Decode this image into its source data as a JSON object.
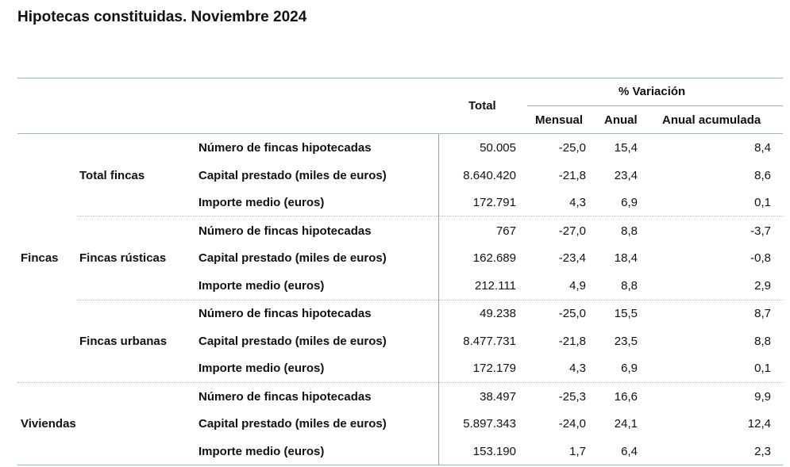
{
  "title": "Hipotecas constituidas. Noviembre 2024",
  "header": {
    "total": "Total",
    "variacion": "% Variación",
    "mensual": "Mensual",
    "anual": "Anual",
    "anual_acumulada": "Anual acumulada"
  },
  "groups": [
    {
      "label": "Fincas"
    },
    {
      "label": "Viviendas"
    }
  ],
  "subgroups": [
    {
      "label": "Total fincas"
    },
    {
      "label": "Fincas rústicas"
    },
    {
      "label": "Fincas urbanas"
    }
  ],
  "rows": [
    {
      "concept": "Número de fincas hipotecadas",
      "total": "50.005",
      "mensual": "-25,0",
      "anual": "15,4",
      "acumulada": "8,4"
    },
    {
      "concept": "Capital prestado (miles de euros)",
      "total": "8.640.420",
      "mensual": "-21,8",
      "anual": "23,4",
      "acumulada": "8,6"
    },
    {
      "concept": "Importe medio (euros)",
      "total": "172.791",
      "mensual": "4,3",
      "anual": "6,9",
      "acumulada": "0,1"
    },
    {
      "concept": "Número de fincas hipotecadas",
      "total": "767",
      "mensual": "-27,0",
      "anual": "8,8",
      "acumulada": "-3,7"
    },
    {
      "concept": "Capital prestado (miles de euros)",
      "total": "162.689",
      "mensual": "-23,4",
      "anual": "18,4",
      "acumulada": "-0,8"
    },
    {
      "concept": "Importe medio (euros)",
      "total": "212.111",
      "mensual": "4,9",
      "anual": "8,8",
      "acumulada": "2,9"
    },
    {
      "concept": "Número de fincas hipotecadas",
      "total": "49.238",
      "mensual": "-25,0",
      "anual": "15,5",
      "acumulada": "8,7"
    },
    {
      "concept": "Capital prestado (miles de euros)",
      "total": "8.477.731",
      "mensual": "-21,8",
      "anual": "23,5",
      "acumulada": "8,8"
    },
    {
      "concept": "Importe medio (euros)",
      "total": "172.179",
      "mensual": "4,3",
      "anual": "6,9",
      "acumulada": "0,1"
    },
    {
      "concept": "Número de fincas hipotecadas",
      "total": "38.497",
      "mensual": "-25,3",
      "anual": "16,6",
      "acumulada": "9,9"
    },
    {
      "concept": "Capital prestado (miles de euros)",
      "total": "5.897.343",
      "mensual": "-24,0",
      "anual": "24,1",
      "acumulada": "12,4"
    },
    {
      "concept": "Importe medio (euros)",
      "total": "153.190",
      "mensual": "1,7",
      "anual": "6,4",
      "acumulada": "2,3"
    }
  ]
}
